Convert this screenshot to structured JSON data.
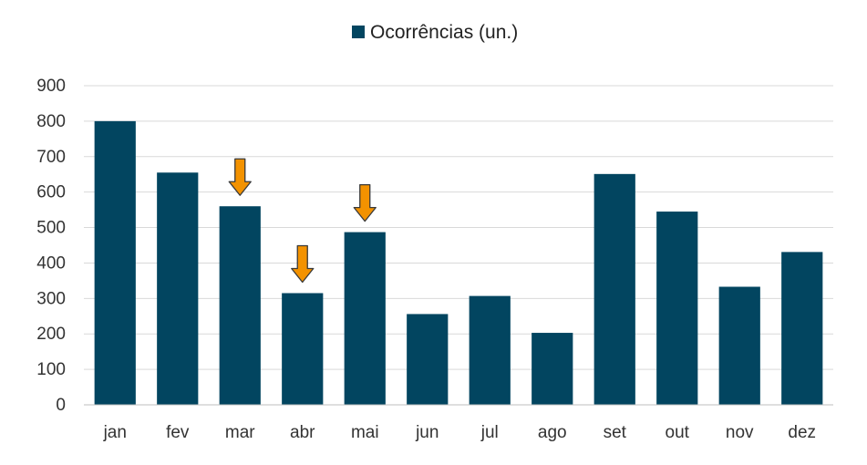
{
  "chart_data": {
    "type": "bar",
    "categories": [
      "jan",
      "fev",
      "mar",
      "abr",
      "mai",
      "jun",
      "jul",
      "ago",
      "set",
      "out",
      "nov",
      "dez"
    ],
    "series": [
      {
        "name": "Ocorrências (un.)",
        "values": [
          800,
          655,
          560,
          315,
          487,
          256,
          307,
          203,
          651,
          545,
          333,
          431
        ],
        "color": "#024560"
      }
    ],
    "ylim": [
      0,
      900
    ],
    "yticks": [
      0,
      100,
      200,
      300,
      400,
      500,
      600,
      700,
      800,
      900
    ],
    "grid": true,
    "legend_position": "top-center",
    "annotations": [
      {
        "kind": "down-arrow",
        "category": "mar",
        "color": "#F39200"
      },
      {
        "kind": "down-arrow",
        "category": "abr",
        "color": "#F39200"
      },
      {
        "kind": "down-arrow",
        "category": "mai",
        "color": "#F39200"
      }
    ]
  }
}
